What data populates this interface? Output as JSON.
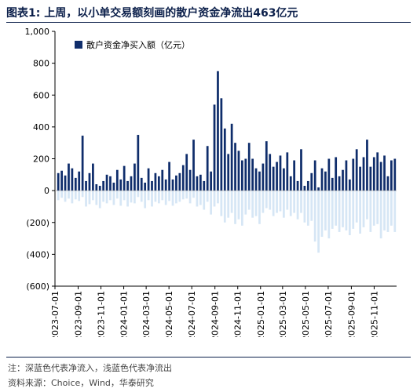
{
  "header": {
    "title": "图表1:  上周，以小单交易额刻画的散户资金净流出463亿元"
  },
  "footer": {
    "note": "注：深蓝色代表净流入，浅蓝色代表净流出",
    "source": "资料来源：Choice，Wind，华泰研究"
  },
  "colors": {
    "inflow": "#0f2d6b",
    "outflow": "#d6e6f5",
    "axis": "#000000"
  },
  "chart_data": {
    "type": "bar",
    "title": "",
    "xlabel": "",
    "ylabel": "",
    "ylim": [
      -600,
      1000
    ],
    "yticks": [
      -600,
      -400,
      -200,
      0,
      200,
      400,
      600,
      800,
      1000
    ],
    "ytick_labels": [
      "(600)",
      "(400)",
      "(200)",
      "0",
      "200",
      "400",
      "600",
      "800",
      "1,000"
    ],
    "x_start": "2023-07-01",
    "x_end": "2025-12-31",
    "xticks": [
      "2023-07-01",
      "2023-09-01",
      "2023-11-01",
      "2024-01-01",
      "2024-03-01",
      "2024-05-01",
      "2024-07-01",
      "2024-09-01",
      "2024-11-01",
      "2025-01-01",
      "2025-03-01",
      "2025-05-01",
      "2025-07-01",
      "2025-09-01",
      "2025-11-01"
    ],
    "legend": {
      "label": "散户资金净买入额（亿元）",
      "position": "top-left"
    },
    "series": [
      {
        "name": "散户资金净买入额（亿元）",
        "weeks": [
          {
            "in": 110,
            "out": -60
          },
          {
            "in": 125,
            "out": -45
          },
          {
            "in": 95,
            "out": -70
          },
          {
            "in": 170,
            "out": -50
          },
          {
            "in": 140,
            "out": -80
          },
          {
            "in": 80,
            "out": -55
          },
          {
            "in": 120,
            "out": -65
          },
          {
            "in": 345,
            "out": -40
          },
          {
            "in": 60,
            "out": -100
          },
          {
            "in": 110,
            "out": -85
          },
          {
            "in": 170,
            "out": -60
          },
          {
            "in": 40,
            "out": -90
          },
          {
            "in": 30,
            "out": -110
          },
          {
            "in": 60,
            "out": -70
          },
          {
            "in": 100,
            "out": -80
          },
          {
            "in": 90,
            "out": -60
          },
          {
            "in": 50,
            "out": -90
          },
          {
            "in": 130,
            "out": -50
          },
          {
            "in": 70,
            "out": -95
          },
          {
            "in": 155,
            "out": -60
          },
          {
            "in": 60,
            "out": -100
          },
          {
            "in": 90,
            "out": -75
          },
          {
            "in": 170,
            "out": -80
          },
          {
            "in": 350,
            "out": -40
          },
          {
            "in": 80,
            "out": -70
          },
          {
            "in": 50,
            "out": -110
          },
          {
            "in": 140,
            "out": -60
          },
          {
            "in": 60,
            "out": -100
          },
          {
            "in": 110,
            "out": -70
          },
          {
            "in": 90,
            "out": -80
          },
          {
            "in": 130,
            "out": -60
          },
          {
            "in": 70,
            "out": -90
          },
          {
            "in": 180,
            "out": -65
          },
          {
            "in": 70,
            "out": -95
          },
          {
            "in": 95,
            "out": -80
          },
          {
            "in": 110,
            "out": -70
          },
          {
            "in": 160,
            "out": -55
          },
          {
            "in": 230,
            "out": -50
          },
          {
            "in": 130,
            "out": -80
          },
          {
            "in": 320,
            "out": -45
          },
          {
            "in": 90,
            "out": -100
          },
          {
            "in": 100,
            "out": -90
          },
          {
            "in": 60,
            "out": -120
          },
          {
            "in": 280,
            "out": -70
          },
          {
            "in": 120,
            "out": -150
          },
          {
            "in": 540,
            "out": -100
          },
          {
            "in": 750,
            "out": -80
          },
          {
            "in": 580,
            "out": -160
          },
          {
            "in": 390,
            "out": -200
          },
          {
            "in": 230,
            "out": -170
          },
          {
            "in": 420,
            "out": -140
          },
          {
            "in": 300,
            "out": -210
          },
          {
            "in": 250,
            "out": -180
          },
          {
            "in": 190,
            "out": -220
          },
          {
            "in": 200,
            "out": -150
          },
          {
            "in": 300,
            "out": -120
          },
          {
            "in": 200,
            "out": -170
          },
          {
            "in": 140,
            "out": -160
          },
          {
            "in": 120,
            "out": -210
          },
          {
            "in": 170,
            "out": -140
          },
          {
            "in": 310,
            "out": -110
          },
          {
            "in": 230,
            "out": -120
          },
          {
            "in": 150,
            "out": -160
          },
          {
            "in": 180,
            "out": -140
          },
          {
            "in": 220,
            "out": -130
          },
          {
            "in": 140,
            "out": -170
          },
          {
            "in": 240,
            "out": -120
          },
          {
            "in": 90,
            "out": -160
          },
          {
            "in": 190,
            "out": -140
          },
          {
            "in": 60,
            "out": -180
          },
          {
            "in": 260,
            "out": -140
          },
          {
            "in": 30,
            "out": -200
          },
          {
            "in": 60,
            "out": -220
          },
          {
            "in": 110,
            "out": -190
          },
          {
            "in": 190,
            "out": -320
          },
          {
            "in": 20,
            "out": -390
          },
          {
            "in": 140,
            "out": -290
          },
          {
            "in": 120,
            "out": -250
          },
          {
            "in": 200,
            "out": -300
          },
          {
            "in": 80,
            "out": -240
          },
          {
            "in": 210,
            "out": -220
          },
          {
            "in": 90,
            "out": -260
          },
          {
            "in": 130,
            "out": -230
          },
          {
            "in": 190,
            "out": -250
          },
          {
            "in": 70,
            "out": -280
          },
          {
            "in": 200,
            "out": -240
          },
          {
            "in": 260,
            "out": -200
          },
          {
            "in": 150,
            "out": -270
          },
          {
            "in": 210,
            "out": -230
          },
          {
            "in": 320,
            "out": -180
          },
          {
            "in": 150,
            "out": -260
          },
          {
            "in": 210,
            "out": -220
          },
          {
            "in": 240,
            "out": -210
          },
          {
            "in": 180,
            "out": -300
          },
          {
            "in": 220,
            "out": -250
          },
          {
            "in": 90,
            "out": -260
          },
          {
            "in": 190,
            "out": -220
          },
          {
            "in": 200,
            "out": -260
          }
        ]
      }
    ]
  }
}
